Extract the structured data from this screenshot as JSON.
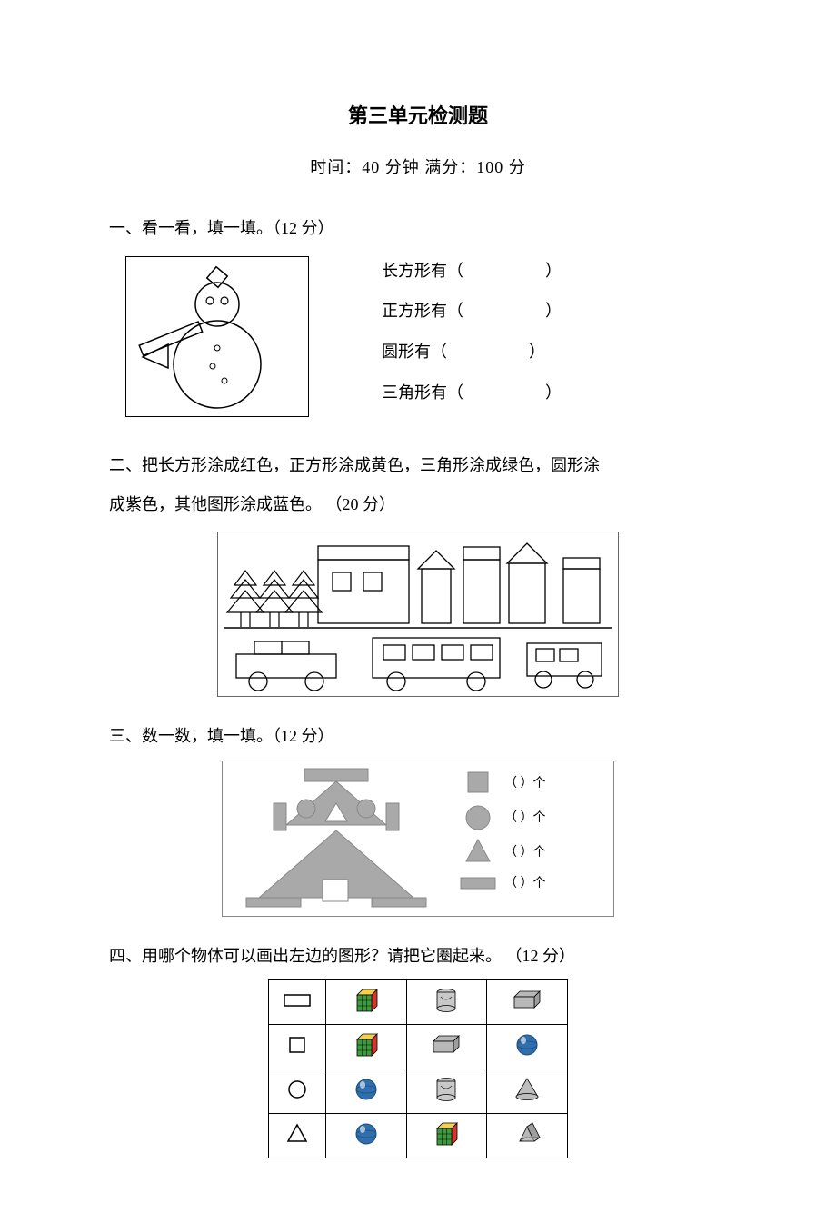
{
  "title": "第三单元检测题",
  "subtitle_prefix": "时间：",
  "duration": "40 分钟",
  "subtitle_mid": "   满分：",
  "full_marks": "100 分",
  "q1": {
    "heading": "一、看一看，填一填。（12 分）",
    "rows": [
      {
        "label": "长方形有（",
        "close": "）"
      },
      {
        "label": "正方形有（",
        "close": "）"
      },
      {
        "label": "圆形有（",
        "close": "）"
      },
      {
        "label": "三角形有（",
        "close": "）"
      }
    ]
  },
  "q2": {
    "line1": "二、把长方形涂成红色，正方形涂成黄色，三角形涂成绿色，圆形涂",
    "line2": "成紫色，其他图形涂成蓝色。 （20 分）"
  },
  "q3": {
    "heading": "三、数一数，填一填。（12 分）",
    "legend": {
      "square": "（       ）个",
      "circle": "（       ）个",
      "triangle": "（       ）个",
      "rect": "（       ）个"
    }
  },
  "q4": {
    "heading": "四、用哪个物体可以画出左边的图形？请把它圈起来。   （12 分）"
  },
  "colors": {
    "black": "#000000",
    "gray_fill": "#a9a9a9",
    "gray_border": "#888888",
    "cube_red": "#d4362f",
    "cube_yellow": "#f3d04e",
    "cube_green": "#3f9a3f",
    "tin_gray": "#c8c8c8",
    "glass_blue": "#2f6fae",
    "glass_dark": "#1e4e7a",
    "cone_gray": "#bdbdbd",
    "prism_gray": "#b8b8b8",
    "white": "#ffffff"
  }
}
